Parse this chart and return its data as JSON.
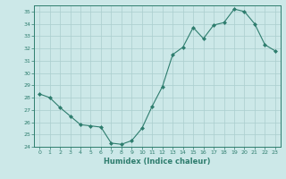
{
  "x": [
    0,
    1,
    2,
    3,
    4,
    5,
    6,
    7,
    8,
    9,
    10,
    11,
    12,
    13,
    14,
    15,
    16,
    17,
    18,
    19,
    20,
    21,
    22,
    23
  ],
  "y": [
    28.3,
    28.0,
    27.2,
    26.5,
    25.8,
    25.7,
    25.6,
    24.3,
    24.2,
    24.5,
    25.5,
    27.3,
    28.9,
    31.5,
    32.1,
    33.7,
    32.8,
    33.9,
    34.1,
    35.2,
    35.0,
    34.0,
    32.3,
    31.8
  ],
  "line_color": "#2e7d6e",
  "marker": "D",
  "marker_size": 2,
  "bg_color": "#cce8e8",
  "grid_color": "#aacece",
  "axis_color": "#2e7d6e",
  "xlabel": "Humidex (Indice chaleur)",
  "ylim": [
    24,
    35.5
  ],
  "yticks": [
    24,
    25,
    26,
    27,
    28,
    29,
    30,
    31,
    32,
    33,
    34,
    35
  ],
  "xticks": [
    0,
    1,
    2,
    3,
    4,
    5,
    6,
    7,
    8,
    9,
    10,
    11,
    12,
    13,
    14,
    15,
    16,
    17,
    18,
    19,
    20,
    21,
    22,
    23
  ]
}
